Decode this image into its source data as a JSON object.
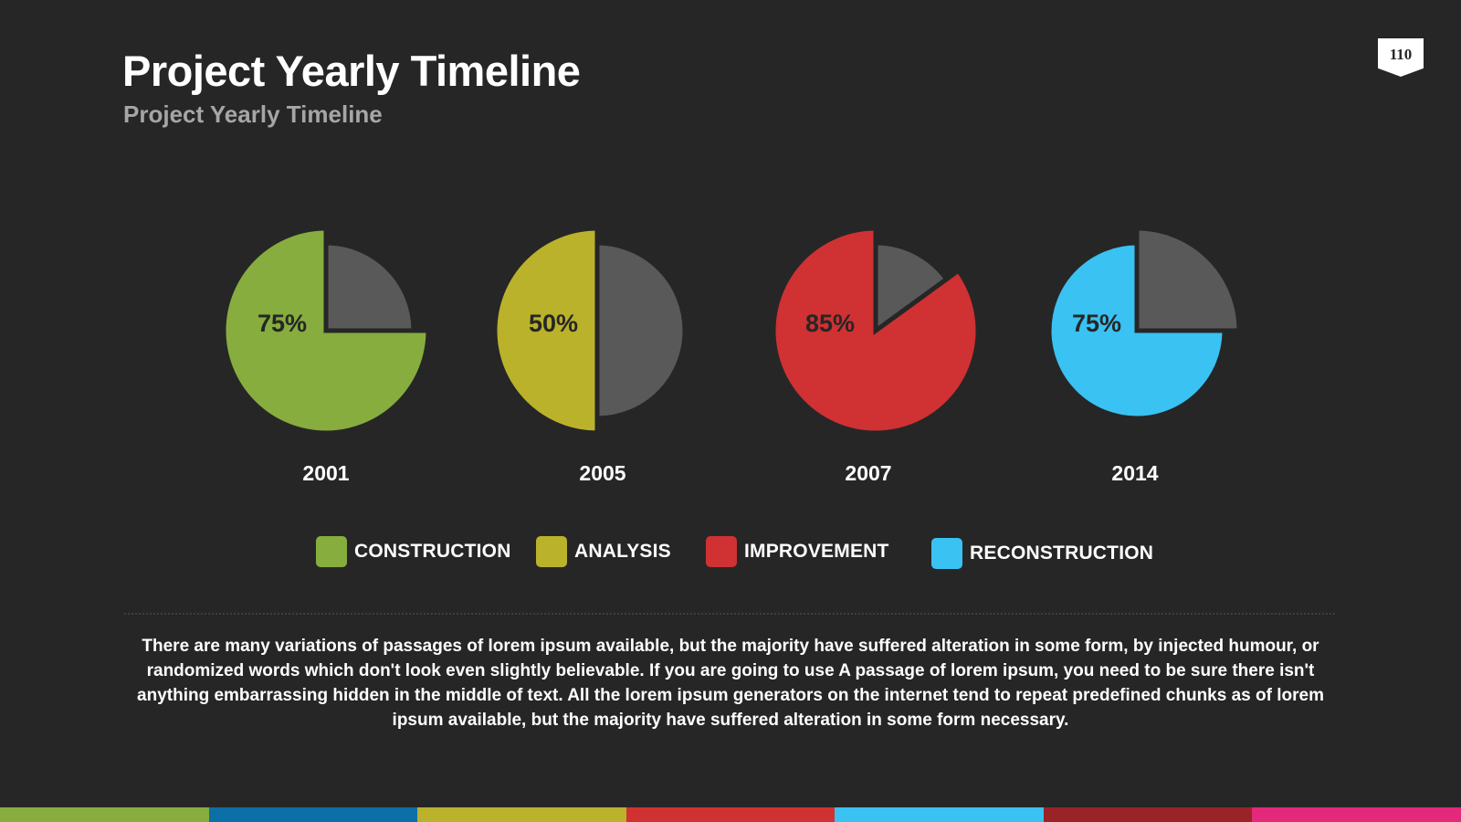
{
  "header": {
    "title": "Project Yearly Timeline",
    "subtitle": "Project Yearly Timeline",
    "page_number": "110"
  },
  "chart_data": {
    "type": "pie",
    "charts": [
      {
        "year": "2001",
        "category": "CONSTRUCTION",
        "percent": 75,
        "label": "75%",
        "color": "#86ad3e",
        "rest_color": "#595959",
        "highlight": "percent"
      },
      {
        "year": "2005",
        "category": "ANALYSIS",
        "percent": 50,
        "label": "50%",
        "color": "#bab22a",
        "rest_color": "#595959",
        "highlight": "percent"
      },
      {
        "year": "2007",
        "category": "IMPROVEMENT",
        "percent": 85,
        "label": "85%",
        "color": "#d03132",
        "rest_color": "#595959",
        "highlight": "percent"
      },
      {
        "year": "2014",
        "category": "RECONSTRUCTION",
        "percent": 75,
        "label": "75%",
        "color": "#39c2f2",
        "rest_color": "#595959",
        "highlight": "rest"
      }
    ],
    "label_color": "#262627"
  },
  "legend": [
    {
      "label": "CONSTRUCTION",
      "color": "#86ad3e"
    },
    {
      "label": "ANALYSIS",
      "color": "#bab22a"
    },
    {
      "label": "IMPROVEMENT",
      "color": "#d03132"
    },
    {
      "label": "RECONSTRUCTION",
      "color": "#39c2f2"
    }
  ],
  "body_text": "There are many variations of passages of lorem ipsum available, but the majority have suffered alteration in some form, by injected humour, or randomized words which don't look even slightly believable. If you are going to use A passage of lorem ipsum, you need to be sure there isn't anything embarrassing hidden in the middle of text. All the lorem ipsum generators on the internet tend to repeat predefined chunks as of lorem ipsum available, but the majority have suffered alteration in some form  necessary.",
  "bottom_bar_colors": [
    "#86ad3e",
    "#0b6fa8",
    "#bab22a",
    "#d03132",
    "#39c2f2",
    "#9a2327",
    "#e4297a"
  ]
}
